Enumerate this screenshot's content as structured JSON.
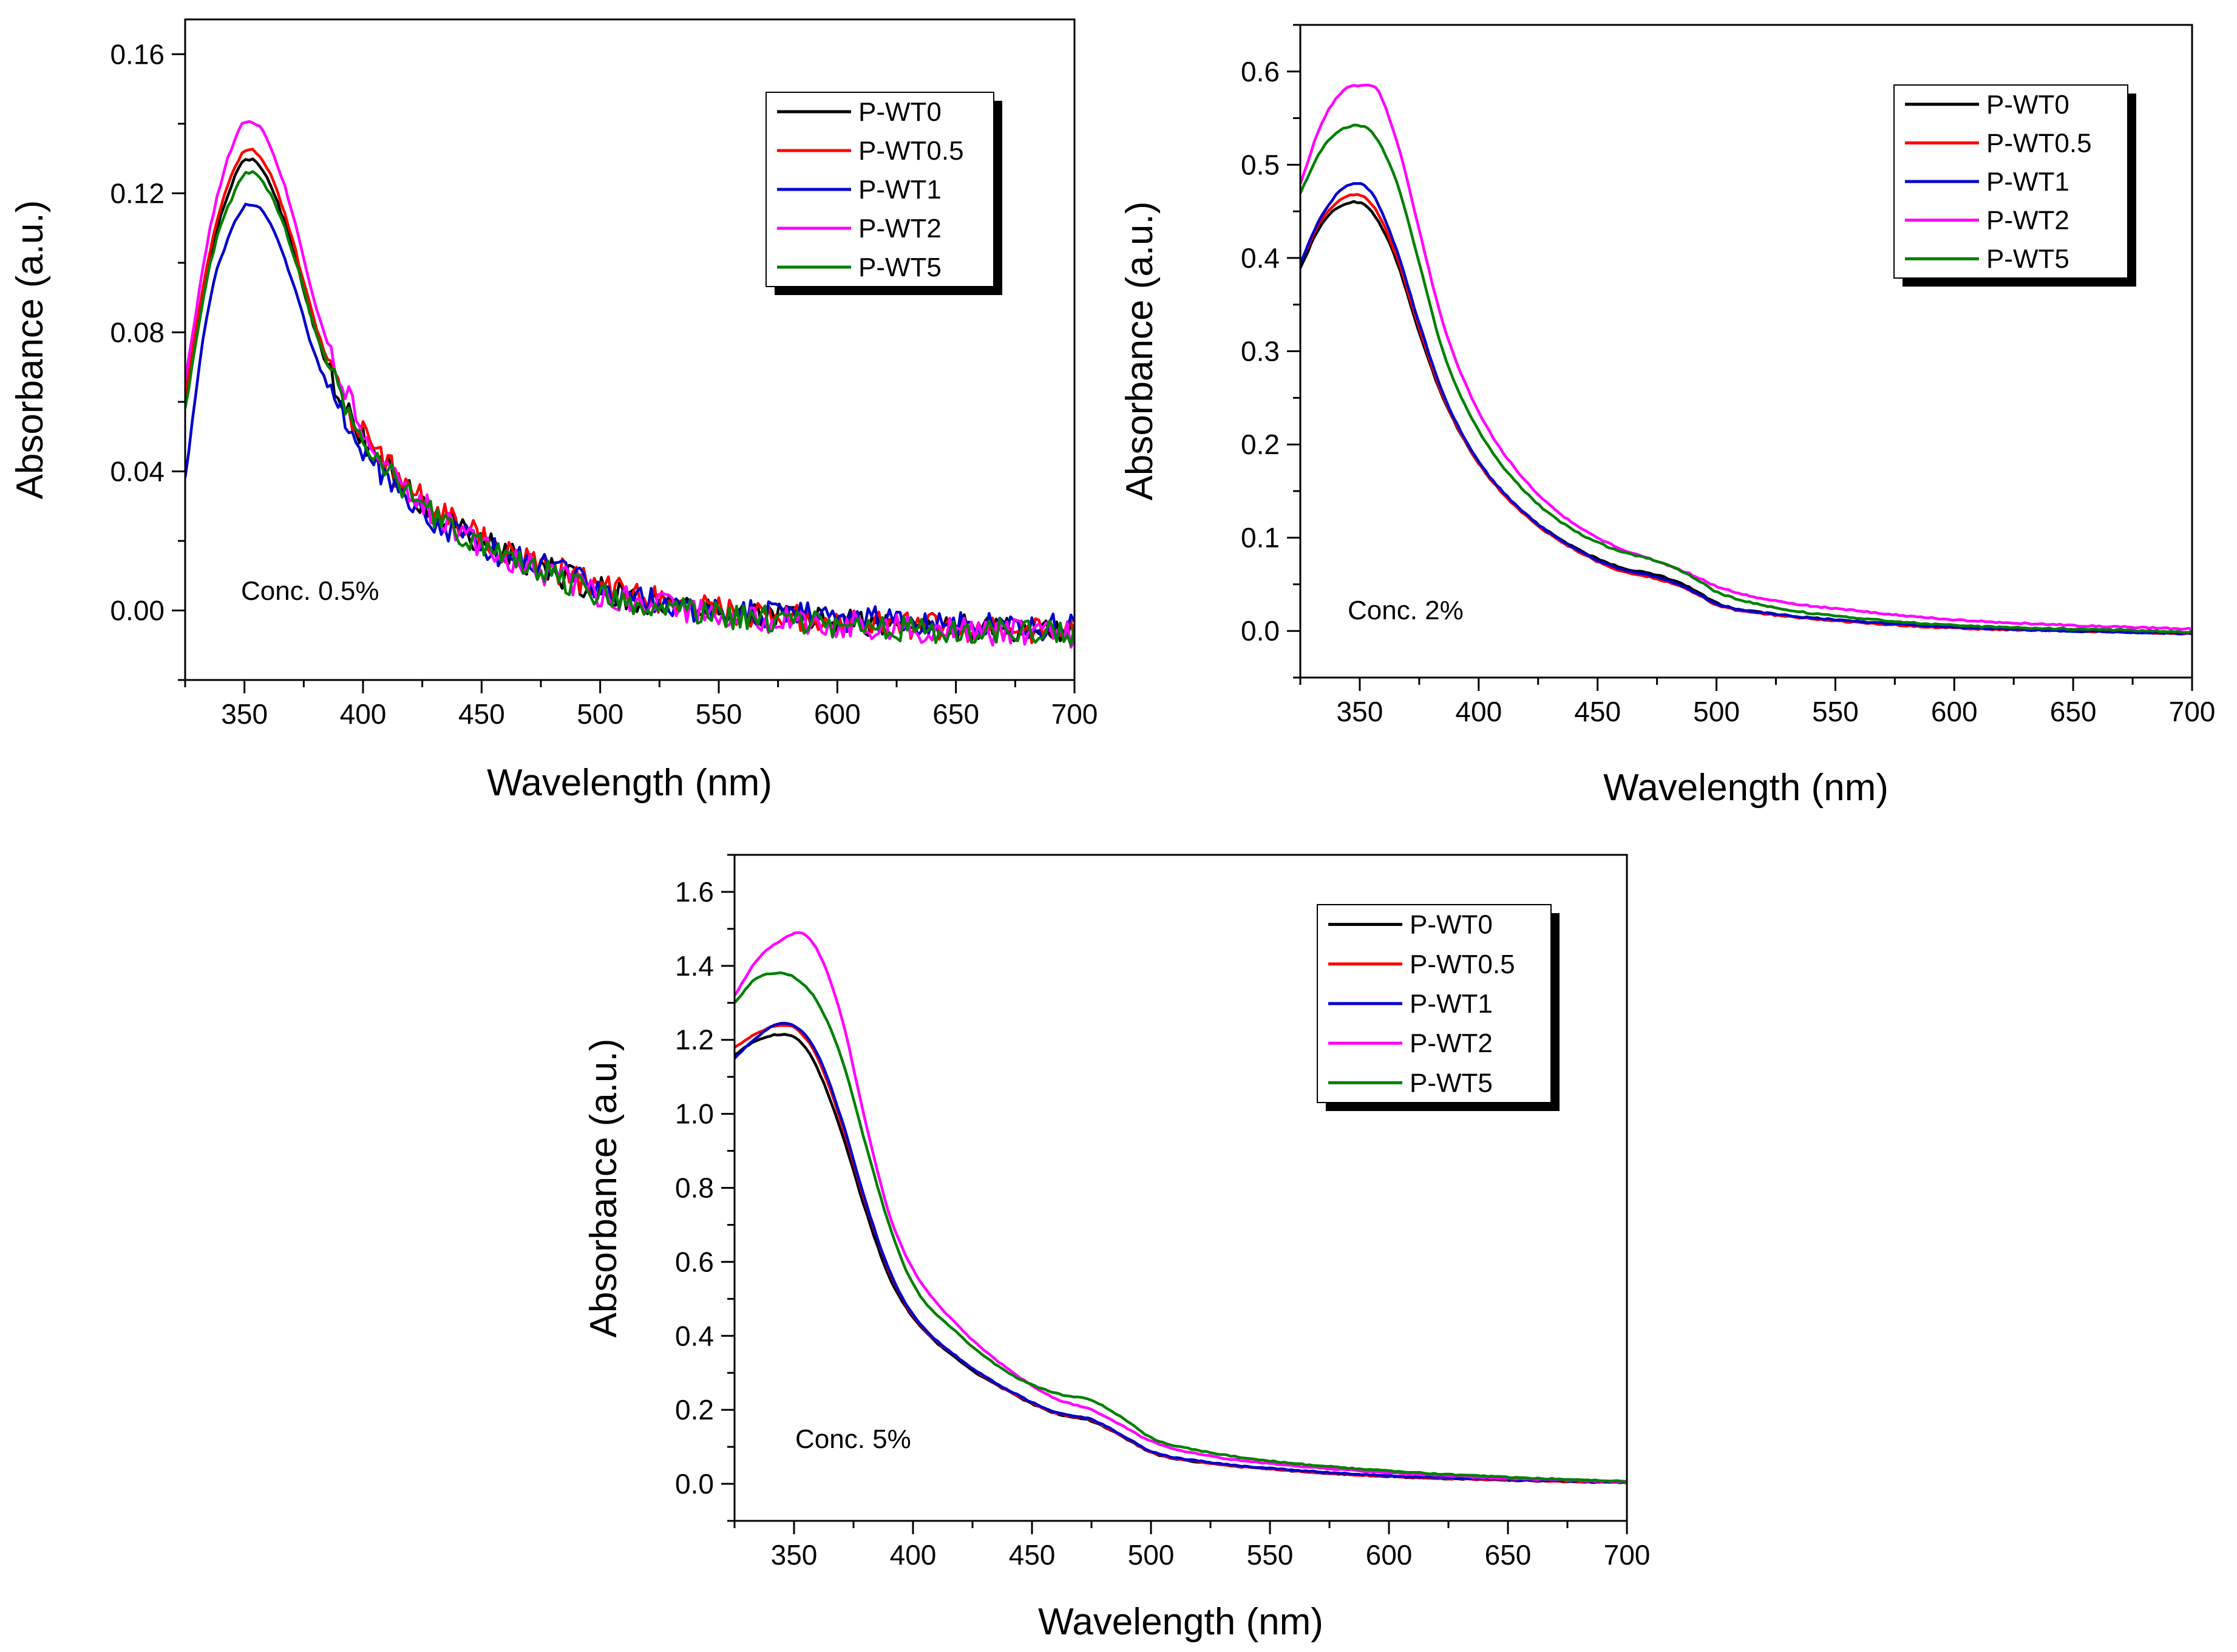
{
  "colors": {
    "P-WT0": "#000000",
    "P-WT0.5": "#ff0000",
    "P-WT1": "#0000cc",
    "P-WT2": "#ff00ff",
    "P-WT5": "#008000"
  },
  "chart_data": [
    {
      "type": "line",
      "title": "",
      "annotation": "Conc. 0.5%",
      "xlabel": "Wavelength (nm)",
      "ylabel": "Absorbance (a.u.)",
      "xlim": [
        325,
        700
      ],
      "ylim": [
        -0.02,
        0.17
      ],
      "xticks": [
        350,
        400,
        450,
        500,
        550,
        600,
        650,
        700
      ],
      "yticks": [
        0.0,
        0.04,
        0.08,
        0.12,
        0.16
      ],
      "ytick_labels": [
        "0.00",
        "0.04",
        "0.08",
        "0.12",
        "0.16"
      ],
      "xtick_labels": [
        "350",
        "400",
        "450",
        "500",
        "550",
        "600",
        "650",
        "700"
      ],
      "legend": "top-right",
      "noise": 0.004,
      "x": [
        325,
        335,
        345,
        352,
        360,
        370,
        380,
        390,
        400,
        420,
        440,
        460,
        480,
        500,
        520,
        550,
        600,
        650,
        700
      ],
      "series": [
        {
          "name": "P-WT0",
          "values": [
            0.06,
            0.1,
            0.123,
            0.13,
            0.124,
            0.105,
            0.08,
            0.062,
            0.05,
            0.034,
            0.024,
            0.016,
            0.011,
            0.006,
            0.003,
            0.0,
            -0.003,
            -0.005,
            -0.006
          ]
        },
        {
          "name": "P-WT0.5",
          "values": [
            0.062,
            0.102,
            0.126,
            0.133,
            0.127,
            0.107,
            0.082,
            0.063,
            0.051,
            0.035,
            0.025,
            0.017,
            0.012,
            0.007,
            0.004,
            0.0,
            -0.003,
            -0.005,
            -0.006
          ]
        },
        {
          "name": "P-WT1",
          "values": [
            0.038,
            0.088,
            0.11,
            0.117,
            0.112,
            0.095,
            0.073,
            0.058,
            0.047,
            0.03,
            0.022,
            0.016,
            0.012,
            0.006,
            0.003,
            0.0,
            -0.002,
            -0.004,
            -0.005
          ]
        },
        {
          "name": "P-WT2",
          "values": [
            0.066,
            0.108,
            0.134,
            0.141,
            0.135,
            0.115,
            0.088,
            0.068,
            0.052,
            0.034,
            0.023,
            0.015,
            0.01,
            0.005,
            0.002,
            -0.001,
            -0.004,
            -0.006,
            -0.007
          ]
        },
        {
          "name": "P-WT5",
          "values": [
            0.058,
            0.098,
            0.119,
            0.126,
            0.121,
            0.104,
            0.08,
            0.063,
            0.05,
            0.033,
            0.023,
            0.015,
            0.01,
            0.005,
            0.002,
            -0.001,
            -0.004,
            -0.006,
            -0.007
          ]
        }
      ]
    },
    {
      "type": "line",
      "title": "",
      "annotation": "Conc. 2%",
      "xlabel": "Wavelength (nm)",
      "ylabel": "Absorbance (a.u.)",
      "xlim": [
        325,
        700
      ],
      "ylim": [
        -0.05,
        0.65
      ],
      "xticks": [
        350,
        400,
        450,
        500,
        550,
        600,
        650,
        700
      ],
      "yticks": [
        0.0,
        0.1,
        0.2,
        0.3,
        0.4,
        0.5,
        0.6
      ],
      "ytick_labels": [
        "0.0",
        "0.1",
        "0.2",
        "0.3",
        "0.4",
        "0.5",
        "0.6"
      ],
      "xtick_labels": [
        "350",
        "400",
        "450",
        "500",
        "550",
        "600",
        "650",
        "700"
      ],
      "legend": "top-right",
      "noise": 0.0015,
      "x": [
        325,
        335,
        348,
        355,
        365,
        375,
        385,
        400,
        420,
        440,
        460,
        475,
        490,
        500,
        525,
        550,
        600,
        650,
        700
      ],
      "series": [
        {
          "name": "P-WT0",
          "values": [
            0.39,
            0.44,
            0.46,
            0.45,
            0.4,
            0.32,
            0.25,
            0.18,
            0.125,
            0.09,
            0.068,
            0.06,
            0.045,
            0.03,
            0.018,
            0.012,
            0.004,
            0.0,
            -0.003
          ]
        },
        {
          "name": "P-WT0.5",
          "values": [
            0.395,
            0.445,
            0.468,
            0.458,
            0.405,
            0.325,
            0.252,
            0.18,
            0.123,
            0.088,
            0.064,
            0.056,
            0.042,
            0.028,
            0.017,
            0.011,
            0.003,
            0.0,
            -0.003
          ]
        },
        {
          "name": "P-WT1",
          "values": [
            0.395,
            0.45,
            0.48,
            0.47,
            0.412,
            0.33,
            0.255,
            0.182,
            0.125,
            0.089,
            0.066,
            0.058,
            0.043,
            0.029,
            0.018,
            0.012,
            0.004,
            0.0,
            -0.003
          ]
        },
        {
          "name": "P-WT2",
          "values": [
            0.48,
            0.55,
            0.585,
            0.585,
            0.53,
            0.43,
            0.33,
            0.235,
            0.16,
            0.115,
            0.088,
            0.075,
            0.06,
            0.048,
            0.032,
            0.024,
            0.012,
            0.006,
            0.002
          ]
        },
        {
          "name": "P-WT5",
          "values": [
            0.47,
            0.52,
            0.542,
            0.535,
            0.485,
            0.395,
            0.3,
            0.215,
            0.148,
            0.108,
            0.085,
            0.075,
            0.058,
            0.042,
            0.025,
            0.016,
            0.006,
            0.002,
            -0.001
          ]
        }
      ]
    },
    {
      "type": "line",
      "title": "",
      "annotation": "Conc. 5%",
      "xlabel": "Wavelength (nm)",
      "ylabel": "Absorbance (a.u.)",
      "xlim": [
        325,
        700
      ],
      "ylim": [
        -0.1,
        1.7
      ],
      "xticks": [
        350,
        400,
        450,
        500,
        550,
        600,
        650,
        700
      ],
      "yticks": [
        0.0,
        0.2,
        0.4,
        0.6,
        0.8,
        1.0,
        1.2,
        1.4,
        1.6
      ],
      "ytick_labels": [
        "0.0",
        "0.2",
        "0.4",
        "0.6",
        "0.8",
        "1.0",
        "1.2",
        "1.4",
        "1.6"
      ],
      "xtick_labels": [
        "350",
        "400",
        "450",
        "500",
        "550",
        "600",
        "650",
        "700"
      ],
      "legend": "top-right",
      "noise": 0.003,
      "x": [
        325,
        335,
        345,
        352,
        360,
        370,
        380,
        390,
        400,
        420,
        440,
        460,
        475,
        490,
        500,
        525,
        550,
        600,
        650,
        700
      ],
      "series": [
        {
          "name": "P-WT0",
          "values": [
            1.16,
            1.2,
            1.215,
            1.2,
            1.12,
            0.95,
            0.74,
            0.56,
            0.45,
            0.33,
            0.25,
            0.19,
            0.17,
            0.12,
            0.085,
            0.055,
            0.04,
            0.02,
            0.01,
            0.003
          ]
        },
        {
          "name": "P-WT0.5",
          "values": [
            1.18,
            1.22,
            1.24,
            1.225,
            1.15,
            0.975,
            0.76,
            0.575,
            0.455,
            0.335,
            0.252,
            0.192,
            0.172,
            0.122,
            0.086,
            0.056,
            0.04,
            0.02,
            0.01,
            0.003
          ]
        },
        {
          "name": "P-WT1",
          "values": [
            1.15,
            1.21,
            1.245,
            1.23,
            1.16,
            0.985,
            0.765,
            0.578,
            0.458,
            0.336,
            0.254,
            0.194,
            0.174,
            0.124,
            0.088,
            0.058,
            0.042,
            0.022,
            0.012,
            0.004
          ]
        },
        {
          "name": "P-WT2",
          "values": [
            1.32,
            1.42,
            1.47,
            1.49,
            1.44,
            1.26,
            0.98,
            0.73,
            0.58,
            0.42,
            0.31,
            0.23,
            0.2,
            0.15,
            0.115,
            0.075,
            0.055,
            0.03,
            0.015,
            0.006
          ]
        },
        {
          "name": "P-WT5",
          "values": [
            1.3,
            1.37,
            1.38,
            1.36,
            1.3,
            1.15,
            0.92,
            0.7,
            0.54,
            0.4,
            0.3,
            0.245,
            0.225,
            0.17,
            0.125,
            0.085,
            0.062,
            0.035,
            0.018,
            0.007
          ]
        }
      ]
    }
  ]
}
